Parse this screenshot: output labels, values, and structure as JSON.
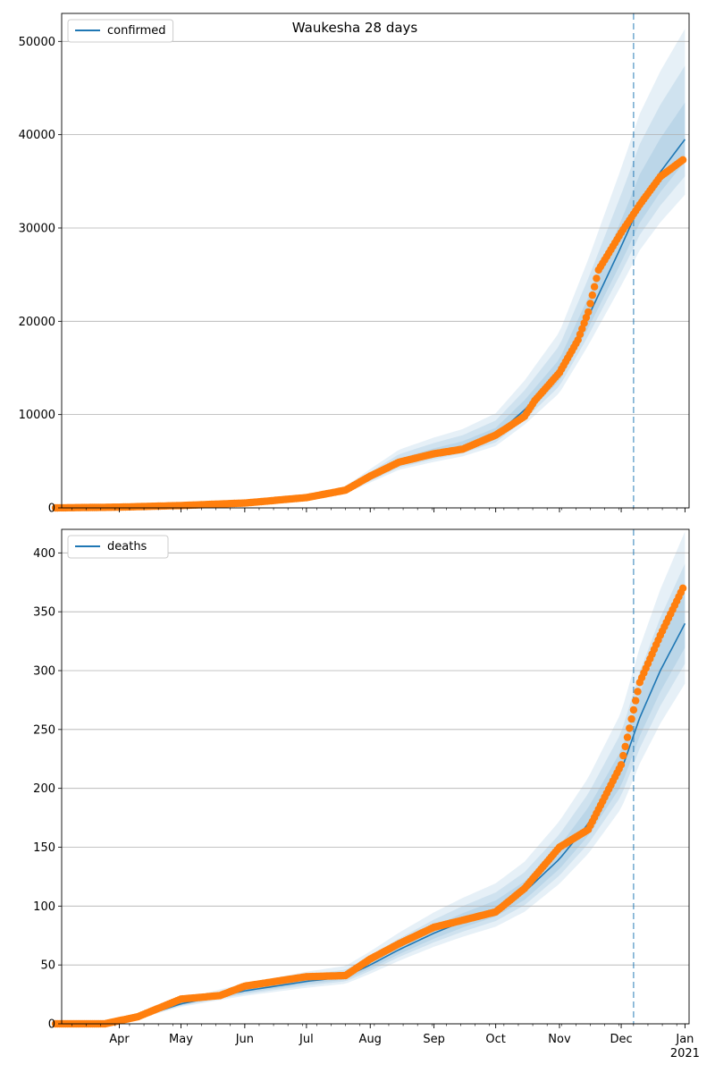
{
  "chart_data": [
    {
      "type": "line",
      "title": "Waukesha 28 days",
      "series": [
        {
          "name": "confirmed",
          "kind": "model-line",
          "color": "#1f77b4",
          "x": [
            "2020-03-01",
            "2020-04-01",
            "2020-05-01",
            "2020-06-01",
            "2020-07-01",
            "2020-07-20",
            "2020-08-01",
            "2020-08-15",
            "2020-09-01",
            "2020-09-15",
            "2020-10-01",
            "2020-10-15",
            "2020-11-01",
            "2020-11-15",
            "2020-12-01",
            "2020-12-10",
            "2020-12-20",
            "2021-01-01"
          ],
          "y": [
            0,
            80,
            250,
            500,
            1000,
            1800,
            3200,
            4800,
            5800,
            6500,
            7800,
            10500,
            14500,
            20500,
            28000,
            32500,
            36000,
            39500
          ]
        },
        {
          "name": "",
          "kind": "observed-points",
          "color": "#ff7f0e",
          "x": [
            "2020-03-01",
            "2020-04-01",
            "2020-05-01",
            "2020-06-01",
            "2020-07-01",
            "2020-07-20",
            "2020-08-01",
            "2020-08-15",
            "2020-09-01",
            "2020-09-15",
            "2020-10-01",
            "2020-10-15",
            "2020-10-20",
            "2020-11-01",
            "2020-11-10",
            "2020-11-15",
            "2020-11-20",
            "2020-12-01",
            "2020-12-10",
            "2020-12-20",
            "2020-12-31"
          ],
          "y": [
            0,
            80,
            250,
            520,
            1100,
            1900,
            3400,
            4900,
            5800,
            6300,
            7800,
            9800,
            11500,
            14500,
            18000,
            21000,
            25500,
            29500,
            32500,
            35500,
            37300
          ]
        }
      ],
      "bands": {
        "center": "confirmed",
        "upper_spread": [
          0.1,
          0.2,
          0.3
        ],
        "lower_spread": [
          0.06,
          0.1,
          0.15
        ],
        "color": "#1f77b4"
      },
      "vline": {
        "x": "2020-12-07",
        "style": "dashed"
      },
      "ylim": [
        0,
        53000
      ],
      "yticks": [
        0,
        10000,
        20000,
        30000,
        40000,
        50000
      ],
      "grid": "y",
      "legend": "top-left"
    },
    {
      "type": "line",
      "title": "",
      "series": [
        {
          "name": "deaths",
          "kind": "model-line",
          "color": "#1f77b4",
          "x": [
            "2020-03-01",
            "2020-03-25",
            "2020-04-10",
            "2020-05-01",
            "2020-06-01",
            "2020-07-01",
            "2020-07-20",
            "2020-08-01",
            "2020-08-15",
            "2020-09-01",
            "2020-09-15",
            "2020-10-01",
            "2020-10-15",
            "2020-11-01",
            "2020-11-15",
            "2020-12-01",
            "2020-12-10",
            "2020-12-20",
            "2021-01-01"
          ],
          "y": [
            0,
            0,
            5,
            17,
            28,
            36,
            40,
            50,
            63,
            77,
            87,
            97,
            112,
            140,
            170,
            215,
            260,
            300,
            340
          ]
        },
        {
          "name": "",
          "kind": "observed-points",
          "color": "#ff7f0e",
          "x": [
            "2020-03-01",
            "2020-03-25",
            "2020-04-10",
            "2020-05-01",
            "2020-05-20",
            "2020-06-01",
            "2020-07-01",
            "2020-07-20",
            "2020-08-01",
            "2020-08-15",
            "2020-09-01",
            "2020-09-15",
            "2020-10-01",
            "2020-10-15",
            "2020-11-01",
            "2020-11-15",
            "2020-12-01",
            "2020-12-10",
            "2020-12-20",
            "2020-12-31"
          ],
          "y": [
            0,
            0,
            6,
            21,
            24,
            32,
            40,
            41,
            55,
            68,
            82,
            88,
            95,
            115,
            150,
            165,
            220,
            290,
            330,
            370
          ]
        }
      ],
      "bands": {
        "center": "deaths",
        "upper_spread": [
          0.08,
          0.15,
          0.23
        ],
        "lower_spread": [
          0.06,
          0.1,
          0.15
        ],
        "color": "#1f77b4"
      },
      "vline": {
        "x": "2020-12-07",
        "style": "dashed"
      },
      "ylim": [
        0,
        420
      ],
      "yticks": [
        0,
        50,
        100,
        150,
        200,
        250,
        300,
        350,
        400
      ],
      "grid": "y",
      "legend": "top-left"
    }
  ],
  "x_axis": {
    "range": [
      "2020-03-04",
      "2021-01-03"
    ],
    "major_ticks": [
      {
        "date": "2020-04-01",
        "label": "Apr"
      },
      {
        "date": "2020-05-01",
        "label": "May"
      },
      {
        "date": "2020-06-01",
        "label": "Jun"
      },
      {
        "date": "2020-07-01",
        "label": "Jul"
      },
      {
        "date": "2020-08-01",
        "label": "Aug"
      },
      {
        "date": "2020-09-01",
        "label": "Sep"
      },
      {
        "date": "2020-10-01",
        "label": "Oct"
      },
      {
        "date": "2020-11-01",
        "label": "Nov"
      },
      {
        "date": "2020-12-01",
        "label": "Dec"
      },
      {
        "date": "2021-01-01",
        "label": "Jan"
      }
    ],
    "year_label": "2021",
    "shared": true
  }
}
